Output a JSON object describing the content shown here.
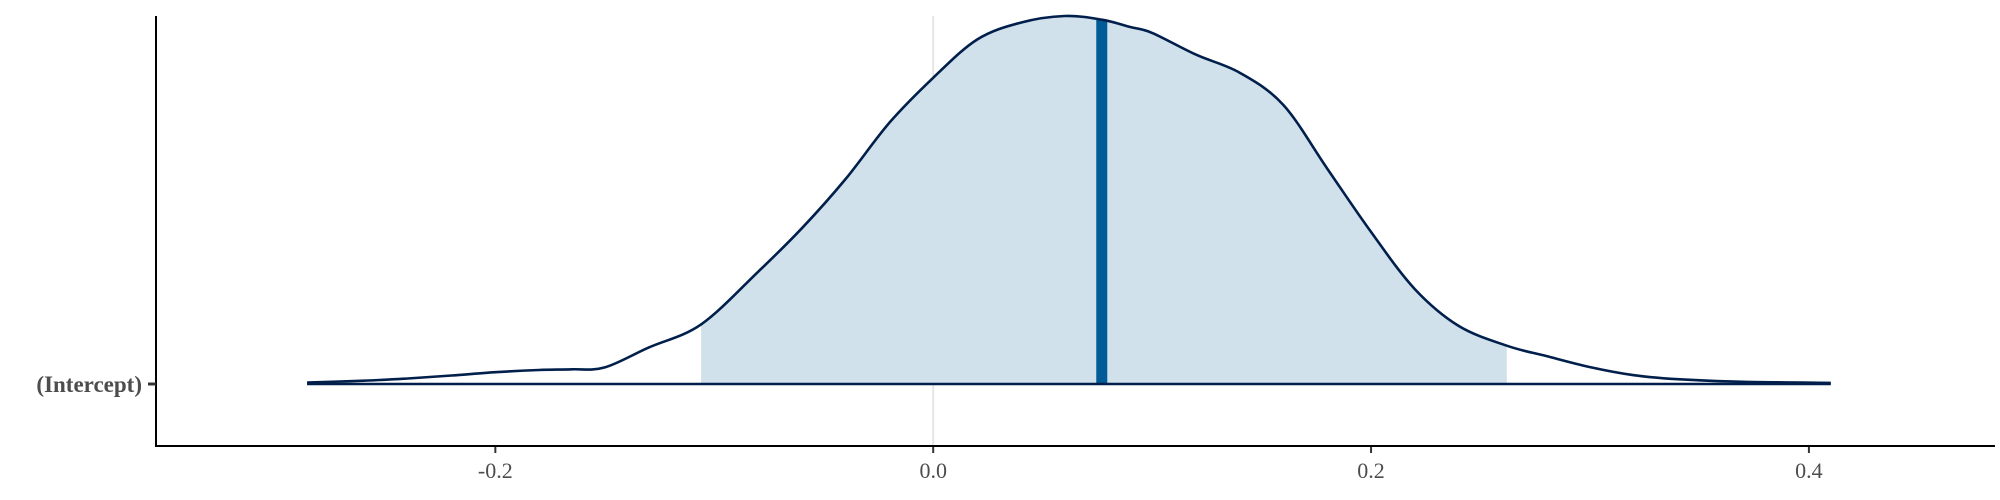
{
  "chart_data": {
    "type": "area",
    "title": "",
    "xlabel": "",
    "ylabel": "",
    "xlim": [
      -0.355,
      0.485
    ],
    "x_ticks": [
      -0.2,
      0.0,
      0.2,
      0.4
    ],
    "x_tick_labels": [
      "-0.2",
      "0.0",
      "0.2",
      "0.4"
    ],
    "reference_line_x": 0.0,
    "grid": false,
    "legend": "none",
    "series": [
      {
        "name": "(Intercept)",
        "median": 0.077,
        "interval": [
          -0.106,
          0.262
        ],
        "density": {
          "x": [
            -0.286,
            -0.26,
            -0.24,
            -0.22,
            -0.2,
            -0.18,
            -0.165,
            -0.15,
            -0.13,
            -0.106,
            -0.08,
            -0.06,
            -0.04,
            -0.02,
            0.0,
            0.02,
            0.04,
            0.06,
            0.077,
            0.09,
            0.1,
            0.12,
            0.14,
            0.16,
            0.18,
            0.2,
            0.22,
            0.24,
            0.262,
            0.28,
            0.3,
            0.32,
            0.34,
            0.37,
            0.41
          ],
          "y": [
            0.004,
            0.009,
            0.015,
            0.023,
            0.032,
            0.038,
            0.04,
            0.045,
            0.099,
            0.162,
            0.305,
            0.423,
            0.557,
            0.71,
            0.832,
            0.936,
            0.982,
            1.0,
            0.99,
            0.97,
            0.954,
            0.895,
            0.846,
            0.758,
            0.585,
            0.413,
            0.258,
            0.158,
            0.104,
            0.076,
            0.046,
            0.024,
            0.013,
            0.006,
            0.003
          ]
        }
      }
    ],
    "colors": {
      "fill": "#d1e1ec",
      "line": "#011f4b",
      "median": "#005b96",
      "reference": "#e6e6e6",
      "axis": "#000000",
      "text": "#4d4d4d"
    }
  }
}
